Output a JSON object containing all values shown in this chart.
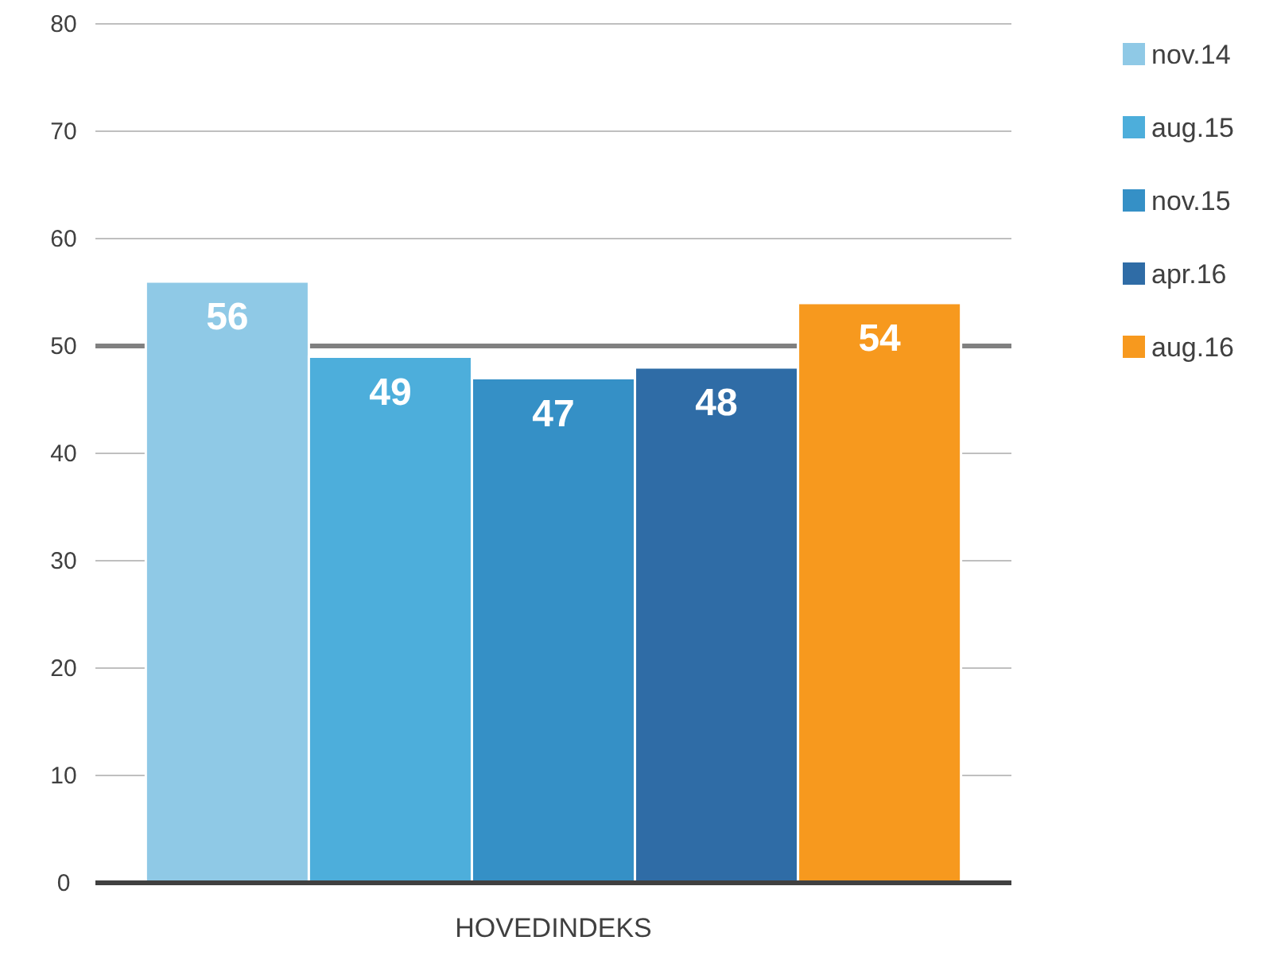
{
  "chart_data": {
    "type": "bar",
    "categories": [
      "HOVEDINDEKS"
    ],
    "series": [
      {
        "name": "nov.14",
        "color": "#8fc9e6",
        "values": [
          56
        ]
      },
      {
        "name": "aug.15",
        "color": "#4daedb",
        "values": [
          49
        ]
      },
      {
        "name": "nov.15",
        "color": "#3590c6",
        "values": [
          47
        ]
      },
      {
        "name": "apr.16",
        "color": "#2f6ca6",
        "values": [
          48
        ]
      },
      {
        "name": "aug.16",
        "color": "#f7991e",
        "values": [
          54
        ]
      }
    ],
    "ylim": [
      0,
      80
    ],
    "yticks": [
      0,
      10,
      20,
      30,
      40,
      50,
      60,
      70,
      80
    ],
    "grid": "y",
    "legend": "right",
    "data_labels": true,
    "ref_lines": [
      {
        "axis": "y",
        "value": 50,
        "color": "#808080"
      }
    ]
  }
}
